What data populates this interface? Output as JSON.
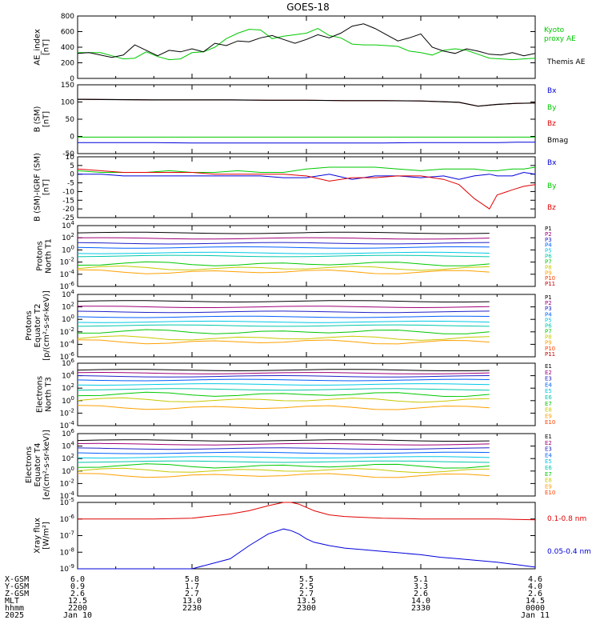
{
  "title": "GOES-18",
  "colors": {
    "black": "#000000",
    "red": "#e00000",
    "green": "#00c800",
    "blue": "#0000dd",
    "darkred": "#a00000"
  },
  "ladder_colors": [
    "#000000",
    "#a00078",
    "#2020c8",
    "#0060ff",
    "#00c8e6",
    "#00c8aa",
    "#00c800",
    "#c8c800",
    "#ffa000",
    "#ff4000",
    "#c80000"
  ],
  "x_labels": [
    "2200",
    "2230",
    "2300",
    "2330",
    "0000"
  ],
  "bottom_table": {
    "rows": [
      {
        "label": "X-GSM",
        "values": [
          "6.0",
          "5.8",
          "5.5",
          "5.1",
          "4.6"
        ]
      },
      {
        "label": "Y-GSM",
        "values": [
          "0.9",
          "1.7",
          "2.5",
          "3.3",
          "4.0"
        ]
      },
      {
        "label": "Z-GSM",
        "values": [
          "2.6",
          "2.7",
          "2.7",
          "2.6",
          "2.6"
        ]
      },
      {
        "label": "MLT",
        "values": [
          "12.5",
          "13.0",
          "13.5",
          "14.0",
          "14.5"
        ]
      },
      {
        "label": "hhmm",
        "values": [
          "2200",
          "2230",
          "2300",
          "2330",
          "0000"
        ]
      },
      {
        "label": "2025",
        "values": [
          "Jan 10",
          "",
          "",
          "",
          "Jan 11"
        ]
      }
    ]
  },
  "chart_data": [
    {
      "type": "line",
      "panel": "ae",
      "ylabel_lines": [
        "AE_index",
        "[nT]"
      ],
      "ylim": [
        0,
        800
      ],
      "yticks": [
        "0",
        "200",
        "400",
        "600",
        "800"
      ],
      "x": [
        0,
        3,
        6,
        9,
        12,
        15,
        18,
        21,
        24,
        27,
        30,
        33,
        36,
        39,
        42,
        45,
        48,
        51,
        54,
        57,
        60,
        63,
        66,
        69,
        72,
        75,
        78,
        81,
        84,
        87,
        90,
        93,
        96,
        99,
        102,
        105,
        108,
        111,
        114,
        117,
        120
      ],
      "series": [
        {
          "name": "Kyoto proxy AE",
          "legend_lines": [
            "Kyoto",
            "proxy AE"
          ],
          "color": "#00c800",
          "values": [
            330,
            330,
            330,
            290,
            250,
            260,
            340,
            280,
            240,
            250,
            330,
            340,
            400,
            510,
            580,
            630,
            620,
            510,
            540,
            560,
            580,
            640,
            550,
            520,
            440,
            430,
            430,
            420,
            410,
            350,
            330,
            300,
            360,
            380,
            360,
            310,
            260,
            250,
            240,
            250,
            260
          ]
        },
        {
          "name": "Themis AE",
          "legend_lines": [
            "Themis AE"
          ],
          "color": "#000000",
          "values": [
            320,
            330,
            300,
            270,
            300,
            430,
            360,
            290,
            360,
            340,
            380,
            340,
            450,
            420,
            480,
            470,
            520,
            550,
            500,
            450,
            500,
            560,
            520,
            580,
            670,
            700,
            640,
            560,
            480,
            520,
            570,
            400,
            350,
            320,
            380,
            350,
            310,
            300,
            330,
            290,
            320
          ]
        }
      ]
    },
    {
      "type": "line",
      "panel": "bsm",
      "ylabel_lines": [
        "B (SM)",
        "[nT]"
      ],
      "ylim": [
        -50,
        150
      ],
      "yticks": [
        "-50",
        "0",
        "50",
        "100",
        "150"
      ],
      "x": [
        0,
        10,
        20,
        30,
        40,
        50,
        60,
        70,
        80,
        90,
        100,
        105,
        110,
        115,
        120
      ],
      "series": [
        {
          "name": "Bx",
          "color": "#0000dd",
          "values": [
            -18,
            -18,
            -18,
            -19,
            -19,
            -19,
            -19,
            -19,
            -19,
            -18,
            -18,
            -18,
            -18,
            -17,
            -17
          ]
        },
        {
          "name": "By",
          "color": "#00c800",
          "values": [
            -2,
            -2,
            -2,
            -2,
            -2,
            -2,
            -2,
            -2,
            -2,
            -2,
            -2,
            -2,
            -2,
            -2,
            -2
          ]
        },
        {
          "name": "Bz",
          "color": "#e00000",
          "values": [
            108,
            107,
            106,
            106,
            106,
            105,
            105,
            104,
            104,
            103,
            99,
            88,
            93,
            96,
            97
          ]
        },
        {
          "name": "Bmag",
          "color": "#000000",
          "values": [
            108,
            107,
            106,
            106,
            106,
            105,
            105,
            104,
            104,
            103,
            99,
            88,
            93,
            96,
            97
          ]
        }
      ]
    },
    {
      "type": "line",
      "panel": "bigrf",
      "ylabel_lines": [
        "B (SM)-IGRF (SM)",
        "[nT]"
      ],
      "ylim": [
        -25,
        10
      ],
      "yticks": [
        "-25",
        "-20",
        "-15",
        "-10",
        "-5",
        "0",
        "5",
        "10"
      ],
      "x": [
        0,
        6,
        12,
        18,
        24,
        30,
        36,
        42,
        48,
        54,
        60,
        66,
        72,
        78,
        84,
        90,
        96,
        100,
        104,
        108,
        110,
        114,
        117,
        120
      ],
      "series": [
        {
          "name": "Bx",
          "color": "#0000dd",
          "values": [
            0,
            0,
            -1,
            -1,
            -1,
            -1,
            -1,
            -1,
            -1,
            -2,
            -2,
            0,
            -3,
            -1,
            -1,
            -2,
            -1,
            -3,
            -1,
            0,
            -1,
            -1,
            1,
            0
          ]
        },
        {
          "name": "By",
          "color": "#00c800",
          "values": [
            2,
            1,
            1,
            1,
            2,
            1,
            1,
            2,
            1,
            1,
            3,
            4,
            4,
            4,
            3,
            2,
            3,
            3,
            3,
            2,
            2,
            3,
            3,
            4
          ]
        },
        {
          "name": "Bz",
          "color": "#e00000",
          "values": [
            3,
            2,
            1,
            1,
            1,
            1,
            0,
            0,
            0,
            0,
            -1,
            -4,
            -2,
            -2,
            -1,
            -1,
            -3,
            -6,
            -14,
            -20,
            -12,
            -9,
            -7,
            -6
          ]
        }
      ]
    },
    {
      "type": "line",
      "panel": "p1",
      "log": true,
      "ylabel_lines": [
        "Protons",
        "North T1"
      ],
      "ylim_exp": [
        -6,
        4
      ],
      "yticks_exp": [
        4,
        2,
        0,
        -2,
        -4,
        -6
      ],
      "legend": [
        "P1",
        "P2",
        "P3",
        "P4",
        "P5",
        "P6",
        "P7",
        "P8",
        "P9",
        "P10",
        "P11"
      ],
      "levels_exp": [
        2.8,
        1.9,
        1.1,
        0.4,
        -0.5,
        -1.0,
        -2.3,
        -3.0,
        -3.6
      ]
    },
    {
      "type": "line",
      "panel": "p2",
      "log": true,
      "ylabel_lines": [
        "Protons",
        "Equator T2",
        "[p/(cm²-s-sr-keV)]"
      ],
      "ylim_exp": [
        -6,
        4
      ],
      "yticks_exp": [
        4,
        2,
        0,
        -2,
        -4,
        -6
      ],
      "legend": [
        "P1",
        "P2",
        "P3",
        "P4",
        "P5",
        "P6",
        "P7",
        "P8",
        "P9",
        "P10",
        "P11"
      ],
      "levels_exp": [
        2.9,
        2.0,
        1.2,
        0.4,
        -0.4,
        -1.0,
        -2.0,
        -3.0,
        -3.6
      ]
    },
    {
      "type": "line",
      "panel": "e1",
      "log": true,
      "ylabel_lines": [
        "Electrons",
        "North T3"
      ],
      "ylim_exp": [
        -4,
        6
      ],
      "yticks_exp": [
        6,
        4,
        2,
        0,
        -2,
        -4
      ],
      "legend": [
        "E1",
        "E2",
        "E3",
        "E4",
        "E5",
        "E6",
        "E7",
        "E8",
        "E9",
        "E10"
      ],
      "levels_exp": [
        4.9,
        4.4,
        3.9,
        3.3,
        2.6,
        1.8,
        1.0,
        0.1,
        -1.1
      ]
    },
    {
      "type": "line",
      "panel": "e2",
      "log": true,
      "ylabel_lines": [
        "Electrons",
        "Equator T4",
        "[e/(cm²-s-sr-keV)]"
      ],
      "ylim_exp": [
        -4,
        6
      ],
      "yticks_exp": [
        6,
        4,
        2,
        0,
        -2,
        -4
      ],
      "legend": [
        "E1",
        "E2",
        "E3",
        "E4",
        "E5",
        "E6",
        "E7",
        "E8",
        "E9",
        "E10"
      ],
      "levels_exp": [
        4.9,
        4.3,
        3.6,
        2.9,
        2.2,
        1.5,
        0.8,
        0.1,
        -0.7
      ]
    },
    {
      "type": "line",
      "panel": "xray",
      "log": true,
      "ylabel_lines": [
        "Xray flux",
        "[W/m²]"
      ],
      "ylim_exp": [
        -9,
        -5
      ],
      "yticks_exp": [
        -5,
        -6,
        -7,
        -8,
        -9
      ],
      "x": [
        0,
        10,
        20,
        30,
        40,
        45,
        50,
        54,
        56,
        58,
        60,
        62,
        66,
        70,
        75,
        80,
        85,
        90,
        95,
        100,
        105,
        110,
        115,
        120
      ],
      "series": [
        {
          "name": "0.1-0.8 nm",
          "color": "#e00000",
          "values": [
            -6.0,
            -6.0,
            -6.0,
            -5.95,
            -5.7,
            -5.5,
            -5.2,
            -5.0,
            -5.0,
            -5.1,
            -5.3,
            -5.5,
            -5.75,
            -5.85,
            -5.9,
            -5.95,
            -5.97,
            -6.0,
            -6.0,
            -6.0,
            -6.0,
            -6.0,
            -6.02,
            -6.05
          ]
        },
        {
          "name": "0.05-0.4 nm",
          "color": "#0000dd",
          "values": [
            -9.9,
            -9.9,
            -9.9,
            -9.9,
            -8.4,
            -7.6,
            -6.9,
            -6.6,
            -6.7,
            -6.9,
            -7.2,
            -7.4,
            -7.6,
            -7.75,
            -7.85,
            -7.95,
            -8.05,
            -8.15,
            -8.3,
            -8.4,
            -8.5,
            -8.6,
            -8.75,
            -8.9
          ]
        }
      ]
    }
  ]
}
